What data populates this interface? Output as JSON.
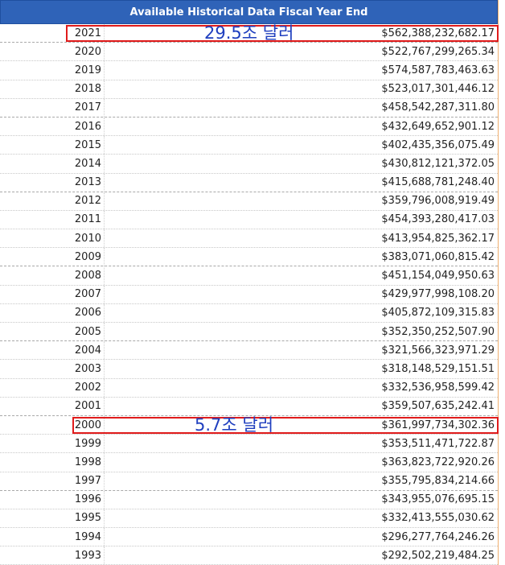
{
  "header": {
    "title": "Available Historical Data Fiscal Year End"
  },
  "rows": [
    {
      "year": "2021",
      "value": "$562,388,232,682.17"
    },
    {
      "year": "2020",
      "value": "$522,767,299,265.34"
    },
    {
      "year": "2019",
      "value": "$574,587,783,463.63"
    },
    {
      "year": "2018",
      "value": "$523,017,301,446.12"
    },
    {
      "year": "2017",
      "value": "$458,542,287,311.80"
    },
    {
      "year": "2016",
      "value": "$432,649,652,901.12"
    },
    {
      "year": "2015",
      "value": "$402,435,356,075.49"
    },
    {
      "year": "2014",
      "value": "$430,812,121,372.05"
    },
    {
      "year": "2013",
      "value": "$415,688,781,248.40"
    },
    {
      "year": "2012",
      "value": "$359,796,008,919.49"
    },
    {
      "year": "2011",
      "value": "$454,393,280,417.03"
    },
    {
      "year": "2010",
      "value": "$413,954,825,362.17"
    },
    {
      "year": "2009",
      "value": "$383,071,060,815.42"
    },
    {
      "year": "2008",
      "value": "$451,154,049,950.63"
    },
    {
      "year": "2007",
      "value": "$429,977,998,108.20"
    },
    {
      "year": "2006",
      "value": "$405,872,109,315.83"
    },
    {
      "year": "2005",
      "value": "$352,350,252,507.90"
    },
    {
      "year": "2004",
      "value": "$321,566,323,971.29"
    },
    {
      "year": "2003",
      "value": "$318,148,529,151.51"
    },
    {
      "year": "2002",
      "value": "$332,536,958,599.42"
    },
    {
      "year": "2001",
      "value": "$359,507,635,242.41"
    },
    {
      "year": "2000",
      "value": "$361,997,734,302.36"
    },
    {
      "year": "1999",
      "value": "$353,511,471,722.87"
    },
    {
      "year": "1998",
      "value": "$363,823,722,920.26"
    },
    {
      "year": "1997",
      "value": "$355,795,834,214.66"
    },
    {
      "year": "1996",
      "value": "$343,955,076,695.15"
    },
    {
      "year": "1995",
      "value": "$332,413,555,030.62"
    },
    {
      "year": "1994",
      "value": "$296,277,764,246.26"
    },
    {
      "year": "1993",
      "value": "$292,502,219,484.25"
    }
  ],
  "annotations": [
    {
      "text": "29.5조 달러",
      "year": "2021"
    },
    {
      "text": "5.7조 달러",
      "year": "2000"
    }
  ],
  "colors": {
    "header_bg": "#2f63b8",
    "highlight": "#e01b1b",
    "note": "#1f3fbf"
  }
}
